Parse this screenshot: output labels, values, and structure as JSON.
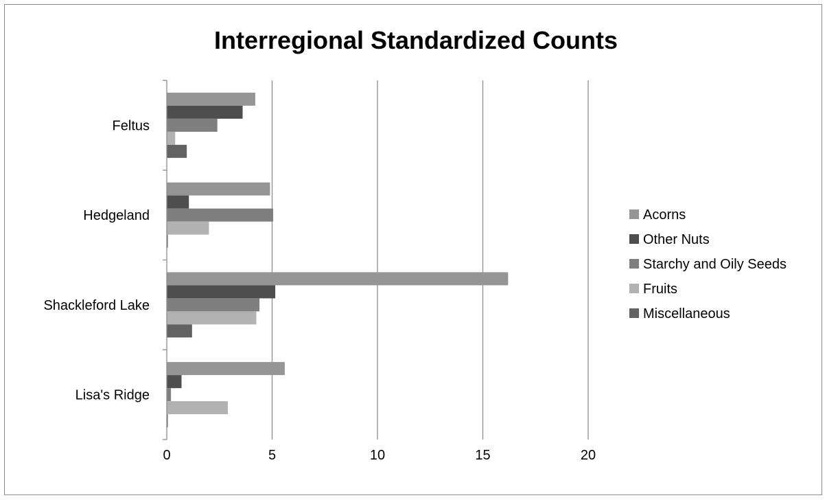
{
  "chart_data": {
    "type": "bar",
    "orientation": "horizontal",
    "title": "Interregional Standardized Counts",
    "categories": [
      "Feltus",
      "Hedgeland",
      "Shackleford Lake",
      "Lisa's Ridge"
    ],
    "series": [
      {
        "name": "Acorns",
        "color": "#959595",
        "values": [
          4.2,
          4.9,
          16.2,
          5.6
        ]
      },
      {
        "name": "Other Nuts",
        "color": "#4e4e4e",
        "values": [
          3.6,
          1.05,
          5.15,
          0.7
        ]
      },
      {
        "name": "Starchy and Oily Seeds",
        "color": "#7f7f7f",
        "values": [
          2.4,
          5.05,
          4.4,
          0.2
        ]
      },
      {
        "name": "Fruits",
        "color": "#b2b2b2",
        "values": [
          0.4,
          2.0,
          4.25,
          2.9
        ]
      },
      {
        "name": "Miscellaneous",
        "color": "#626262",
        "values": [
          0.95,
          0.05,
          1.2,
          0.02
        ]
      }
    ],
    "xlim": [
      0,
      20
    ],
    "xticks": [
      "0",
      "5",
      "10",
      "15",
      "20"
    ],
    "xlabel": "",
    "ylabel": "",
    "grid": true,
    "legend_position": "right"
  }
}
